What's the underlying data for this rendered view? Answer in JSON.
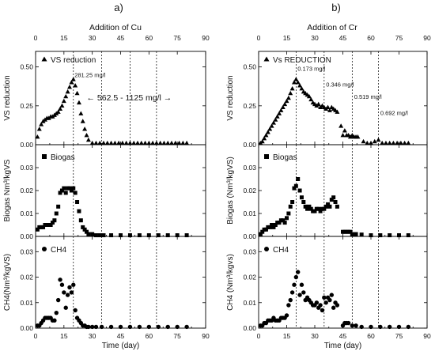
{
  "figure": {
    "colors": {
      "marker": "#000000",
      "background": "#ffffff"
    }
  },
  "chart_data": [
    {
      "type": "scatter",
      "panel_letter": "a)",
      "top_label": "Addition of Cu",
      "xlabel": "Time (day)",
      "xlim": [
        0,
        90
      ],
      "xticks": [
        0,
        15,
        30,
        45,
        60,
        75,
        90
      ],
      "vertical_dotted_lines_x": [
        20,
        35,
        50,
        64
      ],
      "annotations": [
        "281.25 mg/l",
        "← 562.5 - 1125 mg/l →"
      ],
      "subplots": [
        {
          "ylabel": "VS reduction",
          "legend": "VS reduction",
          "marker": "triangle",
          "ylim": [
            0,
            0.6
          ],
          "yticks": [
            0.0,
            0.25,
            0.5
          ],
          "ytick_labels": [
            "0.00",
            "0.25",
            "0.50"
          ],
          "x": [
            1,
            2,
            3,
            4,
            5,
            6,
            7,
            8,
            9,
            10,
            11,
            12,
            13,
            14,
            15,
            16,
            17,
            18,
            19,
            20,
            21,
            22,
            23,
            24,
            25,
            26,
            27,
            28,
            30,
            32,
            34,
            36,
            38,
            40,
            42,
            44,
            46,
            48,
            50,
            52,
            54,
            56,
            58,
            60,
            62,
            64,
            66,
            68,
            70,
            72,
            74,
            76,
            78,
            80
          ],
          "y": [
            0.05,
            0.1,
            0.13,
            0.15,
            0.16,
            0.17,
            0.17,
            0.18,
            0.18,
            0.19,
            0.2,
            0.21,
            0.23,
            0.25,
            0.28,
            0.31,
            0.34,
            0.37,
            0.4,
            0.42,
            0.38,
            0.33,
            0.27,
            0.2,
            0.15,
            0.1,
            0.06,
            0.03,
            0.01,
            0.01,
            0.01,
            0.01,
            0.01,
            0.01,
            0.01,
            0.01,
            0.01,
            0.01,
            0.01,
            0.01,
            0.01,
            0.01,
            0.01,
            0.01,
            0.01,
            0.01,
            0.01,
            0.01,
            0.01,
            0.01,
            0.01,
            0.01,
            0.01,
            0.01
          ]
        },
        {
          "ylabel": "Biogas Nm³/kgVS",
          "legend": "Biogas",
          "marker": "square",
          "ylim": [
            0,
            0.04
          ],
          "yticks": [
            0.0,
            0.01,
            0.02,
            0.03
          ],
          "ytick_labels": [
            "0.00",
            "0.01",
            "0.02",
            "0.03"
          ],
          "x": [
            1,
            2,
            3,
            4,
            5,
            6,
            7,
            8,
            9,
            10,
            11,
            12,
            13,
            14,
            15,
            16,
            17,
            18,
            19,
            20,
            21,
            22,
            23,
            24,
            25,
            26,
            27,
            28,
            30,
            32,
            34,
            36,
            40,
            45,
            50,
            55,
            60,
            65,
            70,
            75,
            80
          ],
          "y": [
            0.003,
            0.004,
            0.004,
            0.004,
            0.005,
            0.005,
            0.005,
            0.005,
            0.006,
            0.007,
            0.01,
            0.013,
            0.019,
            0.02,
            0.021,
            0.019,
            0.021,
            0.021,
            0.02,
            0.021,
            0.019,
            0.015,
            0.011,
            0.007,
            0.004,
            0.003,
            0.002,
            0.001,
            0.001,
            0.0005,
            0.0005,
            0.0005,
            0.0005,
            0.0005,
            0.0005,
            0.0005,
            0.0005,
            0.0005,
            0.0005,
            0.0005,
            0.0005
          ]
        },
        {
          "ylabel": "CH4(Nm³/kgVS)",
          "legend": "CH4",
          "marker": "circle",
          "ylim": [
            0,
            0.036
          ],
          "yticks": [
            0.0,
            0.01,
            0.02,
            0.03
          ],
          "ytick_labels": [
            "0.00",
            "0.01",
            "0.02",
            "0.03"
          ],
          "x": [
            1,
            2,
            3,
            4,
            5,
            6,
            7,
            8,
            9,
            10,
            11,
            12,
            13,
            14,
            15,
            16,
            17,
            18,
            19,
            20,
            21,
            22,
            23,
            24,
            25,
            26,
            27,
            28,
            30,
            32,
            35,
            40,
            45,
            50,
            55,
            60,
            65,
            70,
            75,
            80
          ],
          "y": [
            0.001,
            0.001,
            0.002,
            0.003,
            0.004,
            0.004,
            0.004,
            0.004,
            0.003,
            0.003,
            0.006,
            0.011,
            0.019,
            0.017,
            0.014,
            0.008,
            0.013,
            0.016,
            0.014,
            0.017,
            0.007,
            0.004,
            0.003,
            0.002,
            0.001,
            0.001,
            0.0005,
            0.0005,
            0.0005,
            0.0005,
            0.0005,
            0.0005,
            0.0005,
            0.0005,
            0.0005,
            0.0005,
            0.0005,
            0.0005,
            0.0005,
            0.0005
          ]
        }
      ]
    },
    {
      "type": "scatter",
      "panel_letter": "b)",
      "top_label": "Addition of Cr",
      "xlabel": "Time (day)",
      "xlim": [
        0,
        90
      ],
      "xticks": [
        0,
        15,
        30,
        45,
        60,
        75,
        90
      ],
      "vertical_dotted_lines_x": [
        20,
        35,
        50,
        64
      ],
      "annotations": [
        "0.173 mg/l",
        "0.346 mg/l",
        "0.519 mg/l",
        "0.692 mg/l"
      ],
      "subplots": [
        {
          "ylabel": "VS reduction",
          "legend": "Vs REDUCTION",
          "marker": "triangle",
          "ylim": [
            0,
            0.6
          ],
          "yticks": [
            0.0,
            0.25,
            0.5
          ],
          "ytick_labels": [
            "0.00",
            "0.25",
            "0.50"
          ],
          "x": [
            1,
            2,
            3,
            4,
            5,
            6,
            7,
            8,
            9,
            10,
            11,
            12,
            13,
            14,
            15,
            16,
            17,
            18,
            19,
            20,
            21,
            22,
            23,
            24,
            25,
            26,
            27,
            28,
            29,
            30,
            31,
            32,
            33,
            34,
            35,
            36,
            37,
            38,
            39,
            40,
            41,
            42,
            44,
            45,
            46,
            47,
            48,
            49,
            50,
            51,
            52,
            53,
            56,
            58,
            60,
            62,
            64,
            66,
            68,
            70,
            72,
            74,
            76,
            78,
            80
          ],
          "y": [
            0.01,
            0.02,
            0.04,
            0.06,
            0.08,
            0.1,
            0.12,
            0.14,
            0.16,
            0.18,
            0.2,
            0.22,
            0.24,
            0.26,
            0.28,
            0.3,
            0.33,
            0.36,
            0.4,
            0.42,
            0.4,
            0.38,
            0.36,
            0.34,
            0.33,
            0.32,
            0.31,
            0.29,
            0.27,
            0.26,
            0.25,
            0.26,
            0.24,
            0.25,
            0.24,
            0.23,
            0.24,
            0.22,
            0.24,
            0.23,
            0.22,
            0.21,
            0.12,
            0.06,
            0.09,
            0.06,
            0.06,
            0.05,
            0.06,
            0.05,
            0.05,
            0.05,
            0.02,
            0.01,
            0.01,
            0.02,
            0.03,
            0.01,
            0.01,
            0.01,
            0.01,
            0.01,
            0.01,
            0.01,
            0.01
          ]
        },
        {
          "ylabel": "Biogas (Nm³/kgVS)",
          "legend": "Biogas",
          "marker": "square",
          "ylim": [
            0,
            0.04
          ],
          "yticks": [
            0.0,
            0.01,
            0.02,
            0.03
          ],
          "ytick_labels": [
            "0.00",
            "0.01",
            "0.02",
            "0.03"
          ],
          "x": [
            1,
            2,
            3,
            4,
            5,
            6,
            7,
            8,
            9,
            10,
            11,
            12,
            13,
            14,
            15,
            16,
            17,
            18,
            19,
            20,
            21,
            22,
            23,
            24,
            25,
            26,
            27,
            28,
            29,
            30,
            31,
            32,
            33,
            34,
            35,
            36,
            37,
            38,
            39,
            40,
            41,
            42,
            45,
            46,
            47,
            48,
            49,
            50,
            52,
            55,
            60,
            65,
            70,
            75,
            80
          ],
          "y": [
            0.001,
            0.002,
            0.003,
            0.003,
            0.004,
            0.004,
            0.005,
            0.004,
            0.005,
            0.006,
            0.006,
            0.007,
            0.007,
            0.006,
            0.008,
            0.01,
            0.013,
            0.015,
            0.021,
            0.022,
            0.025,
            0.02,
            0.017,
            0.015,
            0.013,
            0.012,
            0.013,
            0.012,
            0.011,
            0.011,
            0.012,
            0.012,
            0.011,
            0.012,
            0.012,
            0.013,
            0.014,
            0.013,
            0.016,
            0.017,
            0.015,
            0.013,
            0.002,
            0.002,
            0.002,
            0.002,
            0.002,
            0.001,
            0.001,
            0.0008,
            0.0005,
            0.0005,
            0.0005,
            0.0005,
            0.0005
          ]
        },
        {
          "ylabel": "CH4 (Nm³/kgvs)",
          "legend": "CH4",
          "marker": "circle",
          "ylim": [
            0,
            0.036
          ],
          "yticks": [
            0.0,
            0.01,
            0.02,
            0.03
          ],
          "ytick_labels": [
            "0.00",
            "0.01",
            "0.02",
            "0.03"
          ],
          "x": [
            1,
            2,
            3,
            4,
            5,
            6,
            7,
            8,
            9,
            10,
            11,
            12,
            13,
            14,
            15,
            16,
            17,
            18,
            19,
            20,
            21,
            22,
            23,
            24,
            25,
            26,
            27,
            28,
            29,
            30,
            31,
            32,
            33,
            34,
            35,
            36,
            37,
            38,
            39,
            40,
            41,
            42,
            45,
            46,
            47,
            48,
            50,
            52,
            55,
            60,
            65,
            70,
            75,
            80
          ],
          "y": [
            0.001,
            0.001,
            0.002,
            0.002,
            0.003,
            0.003,
            0.003,
            0.004,
            0.003,
            0.003,
            0.003,
            0.004,
            0.004,
            0.004,
            0.005,
            0.009,
            0.011,
            0.014,
            0.017,
            0.02,
            0.022,
            0.013,
            0.017,
            0.014,
            0.011,
            0.012,
            0.011,
            0.01,
            0.009,
            0.009,
            0.01,
            0.008,
            0.009,
            0.007,
            0.012,
            0.01,
            0.012,
            0.011,
            0.013,
            0.008,
            0.01,
            0.009,
            0.001,
            0.002,
            0.002,
            0.002,
            0.001,
            0.001,
            0.0005,
            0.0005,
            0.0005,
            0.0005,
            0.0005,
            0.0005
          ]
        }
      ]
    }
  ]
}
